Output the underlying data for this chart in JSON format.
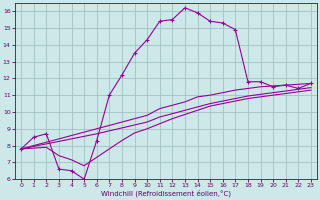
{
  "xlabel": "Windchill (Refroidissement éolien,°C)",
  "background_color": "#cce8e8",
  "line_color": "#990099",
  "grid_color": "#99bbbb",
  "xlim": [
    -0.5,
    23.5
  ],
  "ylim": [
    6,
    16.5
  ],
  "xticks": [
    0,
    1,
    2,
    3,
    4,
    5,
    6,
    7,
    8,
    9,
    10,
    11,
    12,
    13,
    14,
    15,
    16,
    17,
    18,
    19,
    20,
    21,
    22,
    23
  ],
  "yticks": [
    6,
    7,
    8,
    9,
    10,
    11,
    12,
    13,
    14,
    15,
    16
  ],
  "line_marked_x": [
    0,
    1,
    2,
    3,
    4,
    5,
    6,
    7,
    8,
    9,
    10,
    11,
    12,
    13,
    14,
    15,
    16,
    17,
    18,
    19,
    20,
    21,
    22,
    23
  ],
  "line_marked_y": [
    7.8,
    8.5,
    8.7,
    6.6,
    6.5,
    6.0,
    8.3,
    11.0,
    12.2,
    13.5,
    14.3,
    15.4,
    15.5,
    16.2,
    15.9,
    15.4,
    15.3,
    14.9,
    11.8,
    11.8,
    11.5,
    11.6,
    11.4,
    11.7
  ],
  "line_upper_x": [
    0,
    6,
    10,
    11,
    12,
    13,
    14,
    15,
    16,
    17,
    18,
    19,
    20,
    21,
    22,
    23
  ],
  "line_upper_y": [
    7.8,
    9.0,
    9.8,
    10.2,
    10.4,
    10.6,
    10.9,
    11.0,
    11.15,
    11.3,
    11.4,
    11.5,
    11.55,
    11.6,
    11.65,
    11.7
  ],
  "line_mid_x": [
    0,
    6,
    10,
    11,
    12,
    13,
    14,
    15,
    16,
    17,
    18,
    19,
    20,
    21,
    22,
    23
  ],
  "line_mid_y": [
    7.8,
    8.7,
    9.4,
    9.7,
    9.9,
    10.1,
    10.3,
    10.5,
    10.65,
    10.8,
    10.95,
    11.05,
    11.15,
    11.25,
    11.35,
    11.45
  ],
  "line_lower_x": [
    0,
    1,
    2,
    3,
    4,
    5,
    6,
    7,
    8,
    9,
    10,
    11,
    12,
    13,
    14,
    15,
    16,
    17,
    18,
    19,
    20,
    21,
    22,
    23
  ],
  "line_lower_y": [
    7.8,
    7.85,
    7.9,
    7.4,
    7.15,
    6.8,
    7.3,
    7.8,
    8.3,
    8.75,
    9.0,
    9.3,
    9.6,
    9.85,
    10.1,
    10.35,
    10.5,
    10.65,
    10.8,
    10.9,
    11.0,
    11.1,
    11.2,
    11.3
  ]
}
